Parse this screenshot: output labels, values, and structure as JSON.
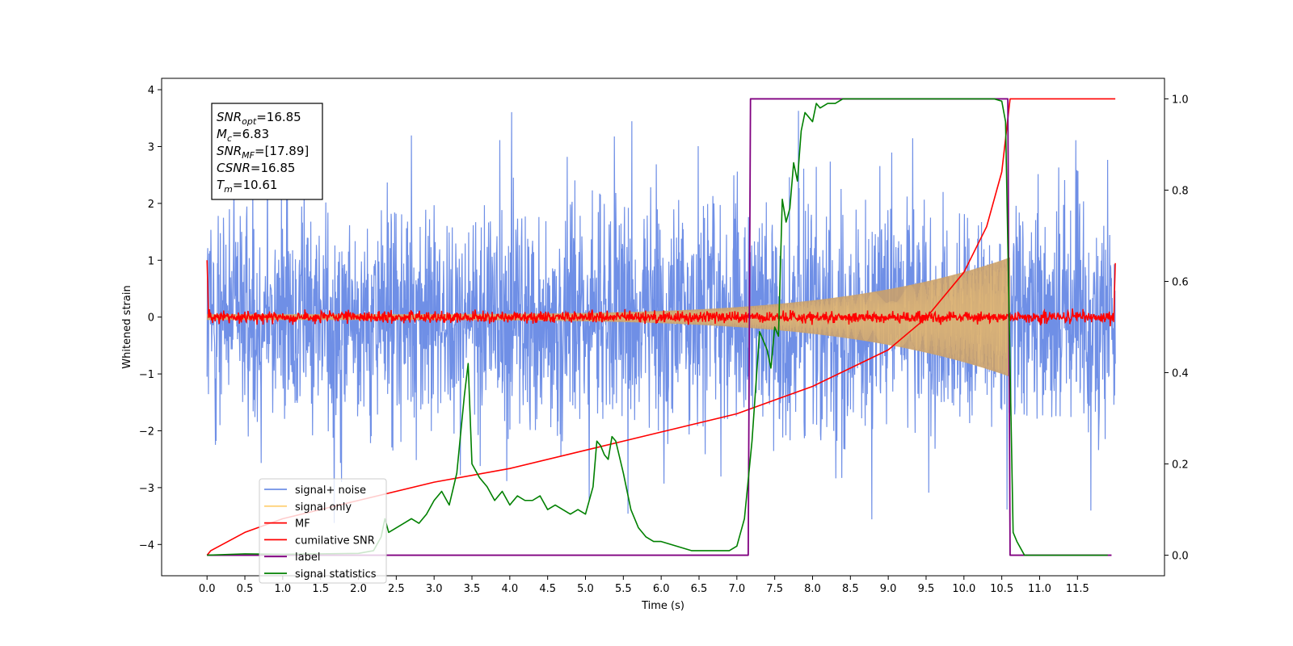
{
  "chart_data": {
    "type": "line",
    "xlabel": "Time (s)",
    "ylabel": "Whitened strain",
    "xlim": [
      -0.6,
      12.65
    ],
    "ylim": [
      -4.55,
      4.2
    ],
    "y2lim": [
      -0.045,
      1.045
    ],
    "xticks": [
      0.0,
      0.5,
      1.0,
      1.5,
      2.0,
      2.5,
      3.0,
      3.5,
      4.0,
      4.5,
      5.0,
      5.5,
      6.0,
      6.5,
      7.0,
      7.5,
      8.0,
      8.5,
      9.0,
      9.5,
      10.0,
      10.5,
      11.0,
      11.5
    ],
    "xtick_labels": [
      "0.0",
      "0.5",
      "1.0",
      "1.5",
      "2.0",
      "2.5",
      "3.0",
      "3.5",
      "4.0",
      "4.5",
      "5.0",
      "5.5",
      "6.0",
      "6.5",
      "7.0",
      "7.5",
      "8.0",
      "8.5",
      "9.0",
      "9.5",
      "10.0",
      "10.5",
      "11.0",
      "11.5"
    ],
    "yticks": [
      -4,
      -3,
      -2,
      -1,
      0,
      1,
      2,
      3,
      4
    ],
    "ytick_labels": [
      "−4",
      "−3",
      "−2",
      "−1",
      "0",
      "1",
      "2",
      "3",
      "4"
    ],
    "y2ticks": [
      0.0,
      0.2,
      0.4,
      0.6,
      0.8,
      1.0
    ],
    "y2tick_labels": [
      "0.0",
      "0.2",
      "0.4",
      "0.6",
      "0.8",
      "1.0"
    ],
    "grid": false,
    "legend_placement": "lower-left",
    "annotation": {
      "lines": [
        {
          "sym": "SNR",
          "sub": "opt",
          "val": "=16.85"
        },
        {
          "sym": "M",
          "sub": "c",
          "val": "=6.83"
        },
        {
          "sym": "SNR",
          "sub": "MF",
          "val": "=[17.89]"
        },
        {
          "sym": "CSNR",
          "sub": "",
          "val": "=16.85"
        },
        {
          "sym": "T",
          "sub": "m",
          "val": "=10.61"
        }
      ]
    },
    "series": [
      {
        "name": "signal+ noise",
        "color": "#6f8fe6",
        "axis": "left",
        "kind": "noise-band",
        "t_range": [
          0.0,
          12.0
        ],
        "typical_extent": [
          -2.0,
          2.1
        ],
        "peak_max": 3.82,
        "peak_min": -3.98
      },
      {
        "name": "signal only",
        "color": "#ffd27a",
        "axis": "left",
        "kind": "chirp",
        "t_range": [
          0.0,
          10.61
        ],
        "amplitude_start": 0.05,
        "amplitude_end": 1.05
      },
      {
        "name": "MF",
        "color": "#ff0000",
        "axis": "left",
        "kind": "noise-band",
        "t_range": [
          0.0,
          12.0
        ],
        "typical_extent": [
          -0.1,
          0.1
        ],
        "edge_values": [
          1.0,
          0.95
        ]
      },
      {
        "name": "cumilative SNR",
        "color": "#ff0000",
        "axis": "right",
        "x": [
          0.0,
          0.05,
          0.5,
          1.0,
          2.0,
          3.0,
          4.0,
          5.0,
          6.0,
          7.0,
          7.5,
          8.0,
          8.5,
          9.0,
          9.5,
          10.0,
          10.3,
          10.5,
          10.61,
          12.0
        ],
        "y": [
          0.0,
          0.01,
          0.05,
          0.08,
          0.12,
          0.16,
          0.19,
          0.23,
          0.27,
          0.31,
          0.34,
          0.37,
          0.41,
          0.45,
          0.52,
          0.62,
          0.72,
          0.84,
          1.0,
          1.0
        ]
      },
      {
        "name": "label",
        "color": "#800080",
        "axis": "right",
        "x": [
          0.0,
          7.15,
          7.18,
          10.58,
          10.61,
          11.95
        ],
        "y": [
          0,
          0,
          1,
          1,
          0,
          0
        ]
      },
      {
        "name": "signal statistics",
        "color": "#008000",
        "axis": "right",
        "x": [
          0.0,
          0.5,
          1.0,
          1.5,
          2.0,
          2.2,
          2.3,
          2.35,
          2.4,
          2.5,
          2.6,
          2.7,
          2.8,
          2.9,
          3.0,
          3.1,
          3.2,
          3.3,
          3.4,
          3.45,
          3.5,
          3.6,
          3.7,
          3.8,
          3.9,
          4.0,
          4.1,
          4.2,
          4.3,
          4.4,
          4.5,
          4.6,
          4.7,
          4.8,
          4.9,
          5.0,
          5.1,
          5.15,
          5.2,
          5.25,
          5.3,
          5.35,
          5.4,
          5.5,
          5.6,
          5.7,
          5.8,
          5.9,
          6.0,
          6.2,
          6.4,
          6.6,
          6.8,
          6.9,
          7.0,
          7.05,
          7.1,
          7.2,
          7.3,
          7.4,
          7.45,
          7.5,
          7.55,
          7.6,
          7.65,
          7.7,
          7.75,
          7.8,
          7.85,
          7.9,
          8.0,
          8.05,
          8.1,
          8.2,
          8.3,
          8.4,
          8.5,
          8.7,
          9.0,
          9.5,
          10.0,
          10.4,
          10.5,
          10.55,
          10.6,
          10.65,
          10.7,
          10.8,
          11.0,
          11.9
        ],
        "y": [
          0.0,
          0.003,
          0.002,
          0.003,
          0.004,
          0.01,
          0.04,
          0.08,
          0.05,
          0.06,
          0.07,
          0.08,
          0.07,
          0.09,
          0.12,
          0.14,
          0.11,
          0.18,
          0.35,
          0.42,
          0.2,
          0.17,
          0.15,
          0.12,
          0.14,
          0.11,
          0.13,
          0.12,
          0.12,
          0.13,
          0.1,
          0.11,
          0.1,
          0.09,
          0.1,
          0.09,
          0.15,
          0.25,
          0.24,
          0.22,
          0.21,
          0.26,
          0.25,
          0.18,
          0.1,
          0.06,
          0.04,
          0.03,
          0.03,
          0.02,
          0.01,
          0.01,
          0.01,
          0.01,
          0.02,
          0.05,
          0.08,
          0.25,
          0.49,
          0.45,
          0.41,
          0.5,
          0.48,
          0.78,
          0.73,
          0.76,
          0.86,
          0.82,
          0.93,
          0.97,
          0.95,
          0.99,
          0.98,
          0.99,
          0.99,
          1.0,
          1.0,
          1.0,
          1.0,
          1.0,
          1.0,
          1.0,
          0.995,
          0.95,
          0.5,
          0.05,
          0.03,
          0.0,
          0.0,
          0.0
        ]
      }
    ]
  }
}
